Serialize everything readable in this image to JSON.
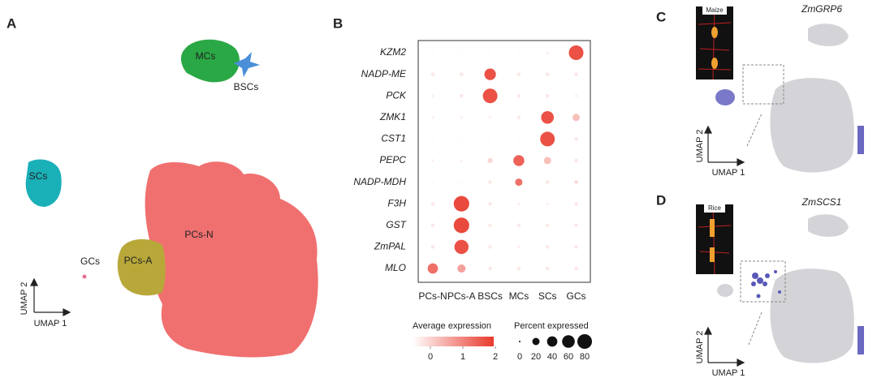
{
  "panel_labels": [
    "A",
    "B",
    "C",
    "D"
  ],
  "panel_a": {
    "clusters": [
      "MCs",
      "BSCs",
      "SCs",
      "PCs-N",
      "PCs-A",
      "GCs"
    ],
    "x_label": "UMAP 1",
    "y_label": "UMAP 2"
  },
  "chart_data": {
    "type": "dot",
    "categories": [
      "PCs-N",
      "PCs-A",
      "BSCs",
      "MCs",
      "SCs",
      "GCs"
    ],
    "genes": [
      "KZM2",
      "NADP-ME",
      "PCK",
      "ZMK1",
      "CST1",
      "PEPC",
      "NADP-MDH",
      "F3H",
      "GST",
      "ZmPAL",
      "MLO"
    ],
    "series": [
      {
        "name": "Percent expressed",
        "values": [
          [
            2,
            2,
            2,
            2,
            3,
            80
          ],
          [
            5,
            5,
            50,
            5,
            5,
            5
          ],
          [
            3,
            5,
            80,
            5,
            5,
            3
          ],
          [
            3,
            3,
            3,
            5,
            60,
            20
          ],
          [
            2,
            2,
            2,
            2,
            80,
            5
          ],
          [
            3,
            3,
            10,
            45,
            20,
            5
          ],
          [
            2,
            2,
            5,
            20,
            5,
            5
          ],
          [
            5,
            90,
            5,
            3,
            3,
            5
          ],
          [
            5,
            90,
            5,
            5,
            5,
            5
          ],
          [
            5,
            75,
            5,
            3,
            5,
            5
          ],
          [
            40,
            25,
            5,
            5,
            5,
            5
          ]
        ]
      },
      {
        "name": "Average expression",
        "values": [
          [
            0.1,
            0.1,
            0.1,
            0.1,
            0.2,
            2.2
          ],
          [
            0.3,
            0.3,
            2.2,
            0.3,
            0.3,
            0.3
          ],
          [
            0.2,
            0.3,
            2.2,
            0.3,
            0.3,
            0.2
          ],
          [
            0.2,
            0.2,
            0.2,
            0.3,
            2.2,
            0.8
          ],
          [
            0.1,
            0.1,
            0.1,
            0.1,
            2.2,
            0.3
          ],
          [
            0.2,
            0.2,
            0.5,
            2.0,
            0.8,
            0.3
          ],
          [
            0.1,
            0.1,
            0.3,
            1.8,
            0.3,
            0.5
          ],
          [
            0.3,
            2.3,
            0.3,
            0.2,
            0.2,
            0.3
          ],
          [
            0.3,
            2.3,
            0.3,
            0.3,
            0.3,
            0.3
          ],
          [
            0.3,
            2.2,
            0.3,
            0.2,
            0.3,
            0.3
          ],
          [
            1.8,
            1.2,
            0.3,
            0.3,
            0.3,
            0.3
          ]
        ]
      }
    ],
    "color_lim": [
      0,
      2.5
    ],
    "color_ticks": [
      0,
      1,
      2
    ],
    "size_ticks": [
      0,
      20,
      40,
      60,
      80
    ],
    "color": "#e8392c"
  },
  "panel_c": {
    "inset_label": "Maize",
    "gene": "ZmGRP6",
    "x_label": "UMAP 1",
    "y_label": "UMAP 2"
  },
  "panel_d": {
    "inset_label": "Rice",
    "gene": "ZmSCS1",
    "x_label": "UMAP 1",
    "y_label": "UMAP 2"
  }
}
